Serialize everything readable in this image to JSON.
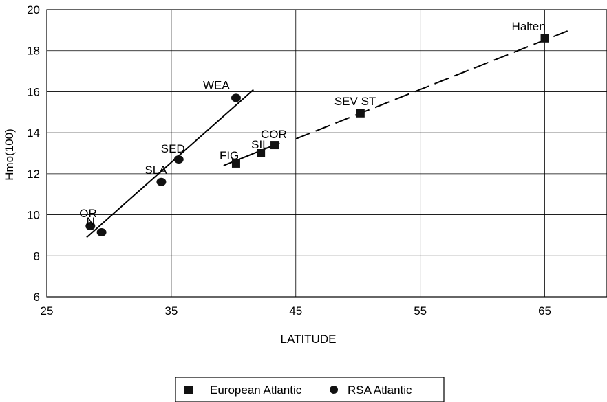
{
  "chart_data": {
    "type": "scatter",
    "xlabel": "LATITUDE",
    "ylabel": "Hmo(100)",
    "xlim": [
      25,
      70
    ],
    "ylim": [
      6,
      20
    ],
    "x_ticks": [
      "25",
      "35",
      "45",
      "55",
      "65"
    ],
    "y_ticks": [
      "6",
      "8",
      "10",
      "12",
      "14",
      "16",
      "18",
      "20"
    ],
    "grid": true,
    "legend_position": "bottom",
    "series": [
      {
        "name": "European Atlantic",
        "marker": "square",
        "color": "#111111",
        "points": [
          {
            "label": "FIG",
            "x": 40.2,
            "y": 12.5
          },
          {
            "label": "SIL",
            "x": 42.2,
            "y": 13.0
          },
          {
            "label": "COR",
            "x": 43.3,
            "y": 13.4
          },
          {
            "label": "SEV ST",
            "x": 50.2,
            "y": 14.95
          },
          {
            "label": "Halten",
            "x": 65.0,
            "y": 18.6
          }
        ]
      },
      {
        "name": "RSA Atlantic",
        "marker": "circle",
        "color": "#111111",
        "points": [
          {
            "label": "OR",
            "x": 28.5,
            "y": 9.45
          },
          {
            "label": "N",
            "x": 29.4,
            "y": 9.15
          },
          {
            "label": "SLA",
            "x": 34.2,
            "y": 11.6
          },
          {
            "label": "SED",
            "x": 35.6,
            "y": 12.7
          },
          {
            "label": "WEA",
            "x": 40.2,
            "y": 15.7
          }
        ]
      }
    ],
    "trend_lines": [
      {
        "series": "RSA Atlantic",
        "style": "solid",
        "from": [
          28.2,
          8.9
        ],
        "to": [
          41.6,
          16.1
        ]
      },
      {
        "series": "European Atlantic",
        "style": "solid",
        "from": [
          39.2,
          12.4
        ],
        "to": [
          43.7,
          13.5
        ]
      },
      {
        "series": "European Atlantic",
        "style": "dashed",
        "from": [
          45.0,
          13.7
        ],
        "to": [
          67.0,
          19.0
        ]
      }
    ]
  }
}
